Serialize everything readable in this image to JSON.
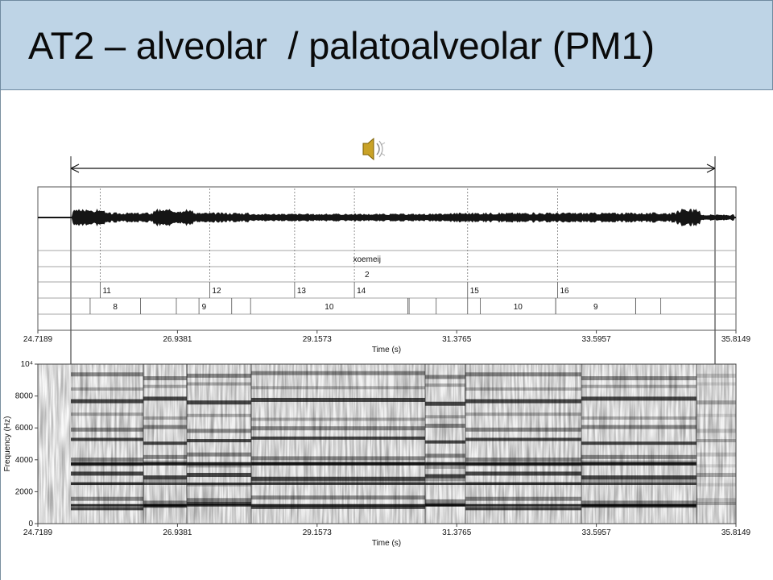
{
  "slide": {
    "title": "AT2 – alveolar  / palatoalveolar (PM1)",
    "audio_icon": "speaker-sound-icon"
  },
  "praat": {
    "tiers": {
      "word": [
        {
          "label": "xoemeij",
          "t": 29.95
        }
      ],
      "repetition": [
        {
          "label": "2",
          "t": 29.95
        }
      ],
      "points": [
        {
          "label": "11",
          "t": 25.71
        },
        {
          "label": "12",
          "t": 27.45
        },
        {
          "label": "13",
          "t": 28.8
        },
        {
          "label": "14",
          "t": 29.75
        },
        {
          "label": "15",
          "t": 31.55
        },
        {
          "label": "16",
          "t": 32.98
        }
      ],
      "intervals": [
        {
          "label": "8",
          "start": 25.55,
          "end": 26.35
        },
        {
          "label": "9",
          "start": 26.92,
          "end": 27.8
        },
        {
          "label": "10",
          "start": 28.1,
          "end": 30.6
        },
        {
          "label": "10",
          "start": 31.75,
          "end": 32.95
        },
        {
          "label": "9",
          "start": 32.95,
          "end": 34.22
        }
      ]
    },
    "waveform_axis": {
      "ticks": [
        "24.7189",
        "26.9381",
        "29.1573",
        "31.3765",
        "33.5957",
        "35.8149"
      ],
      "xlabel": "Time (s)"
    },
    "spectrogram": {
      "ylabel": "Frequency (Hz)",
      "yticks": [
        "0",
        "2000",
        "4000",
        "6000",
        "8000",
        "10⁴"
      ],
      "xticks": [
        "24.7189",
        "26.9381",
        "29.1573",
        "31.3765",
        "33.5957",
        "35.8149"
      ],
      "xlabel": "Time (s)",
      "tmin": 24.7189,
      "tmax": 35.8149,
      "fmax": 10000
    },
    "colors": {
      "signal": "#151515",
      "frame": "#555555",
      "title_bg": "#bed4e6"
    }
  }
}
